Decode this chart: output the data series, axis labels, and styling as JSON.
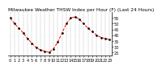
{
  "title": "Milwaukee Weather THSW Index per Hour (F) (Last 24 Hours)",
  "hours": [
    0,
    1,
    2,
    3,
    4,
    5,
    6,
    7,
    8,
    9,
    10,
    11,
    12,
    13,
    14,
    15,
    16,
    17,
    18,
    19,
    20,
    21,
    22,
    23
  ],
  "values": [
    55,
    50,
    46,
    42,
    37,
    33,
    29,
    27,
    26,
    25,
    28,
    34,
    42,
    50,
    55,
    56,
    54,
    50,
    46,
    43,
    40,
    38,
    37,
    36
  ],
  "line_color": "#ff0000",
  "marker_color": "#000000",
  "bg_color": "#ffffff",
  "grid_color": "#888888",
  "ylim": [
    22,
    60
  ],
  "yticks": [
    25,
    30,
    35,
    40,
    45,
    50,
    55
  ],
  "title_fontsize": 4.2,
  "tick_fontsize": 3.5
}
